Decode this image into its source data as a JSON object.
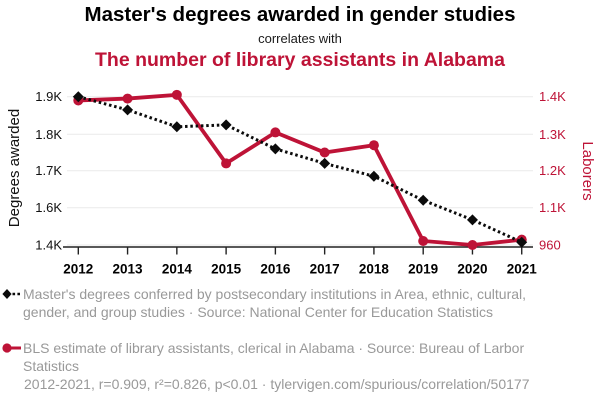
{
  "header": {
    "title": "Master's degrees awarded in gender studies",
    "connector": "correlates with",
    "title2": "The number of library assistants in Alabama"
  },
  "chart_data": {
    "type": "line",
    "x": [
      2012,
      2013,
      2014,
      2015,
      2016,
      2017,
      2018,
      2019,
      2020,
      2021
    ],
    "series": [
      {
        "name": "Master's degrees conferred in Area, ethnic, cultural, gender, and group studies",
        "axis": "left",
        "style": "dotted",
        "marker": "diamond",
        "color": "#0b0b0b",
        "z": 2,
        "values": [
          1900,
          1865,
          1820,
          1825,
          1760,
          1720,
          1685,
          1620,
          1535,
          1415
        ]
      },
      {
        "name": "BLS estimate of library assistants, clerical in Alabama",
        "axis": "right",
        "style": "solid",
        "marker": "circle",
        "color": "#be1337",
        "z": 1,
        "values": [
          1390,
          1395,
          1405,
          1220,
          1305,
          1250,
          1270,
          975,
          960,
          980
        ]
      }
    ],
    "left_axis": {
      "label": "Degrees awarded",
      "ticks": [
        "1.9K",
        "1.8K",
        "1.7K",
        "1.6K",
        "1.4K"
      ],
      "tick_values": [
        1900,
        1800,
        1700,
        1600,
        1400
      ]
    },
    "right_axis": {
      "label": "Laborers",
      "ticks": [
        "1.4K",
        "1.3K",
        "1.2K",
        "1.1K",
        "960"
      ],
      "tick_values": [
        1400,
        1300,
        1200,
        1100,
        960
      ]
    },
    "grid": true,
    "legend_position": "below"
  },
  "legend": {
    "items": [
      {
        "marker": "black-diamond-dotted-line",
        "text": "Master's degrees conferred by postsecondary institutions in Area, ethnic, cultural, gender, and group studies · Source: National Center for Education Statistics"
      },
      {
        "marker": "red-circle-solid-line",
        "text": "BLS estimate of library assistants, clerical in Alabama · Source: Bureau of Larbor Statistics"
      }
    ]
  },
  "footer": {
    "text": "2012-2021, r=0.909, r²=0.826, p<0.01 · tylervigen.com/spurious/correlation/50177"
  },
  "colors": {
    "accent_red": "#be1337",
    "series_black": "#0b0b0b",
    "legend_gray": "#999999",
    "gridline": "#ededed",
    "axis": "#222222"
  }
}
